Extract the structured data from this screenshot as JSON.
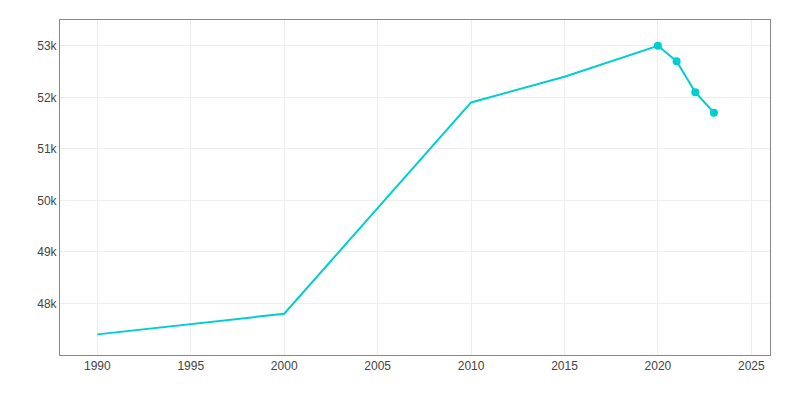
{
  "chart_data": {
    "type": "line",
    "series": [
      {
        "type": "line",
        "color": "#00CED1",
        "line_style": "solid",
        "x": [
          1990,
          1995,
          2000,
          2010,
          2015,
          2020,
          2021,
          2022,
          2023
        ],
        "values": [
          47400,
          47600,
          47800,
          51900,
          52400,
          53000,
          52700,
          52100,
          51700
        ]
      },
      {
        "type": "scatter",
        "color": "#00CED1",
        "marker": "circle",
        "x": [
          2020,
          2021,
          2022,
          2023
        ],
        "values": [
          53000,
          52700,
          52100,
          51700
        ]
      }
    ],
    "xlim": [
      1988,
      2026
    ],
    "ylim": [
      47000,
      53500
    ],
    "xticks": [
      1990,
      1995,
      2000,
      2005,
      2010,
      2015,
      2020,
      2025
    ],
    "yticks": [
      {
        "value": 48000,
        "label": "48k"
      },
      {
        "value": 49000,
        "label": "49k"
      },
      {
        "value": 50000,
        "label": "50k"
      },
      {
        "value": 51000,
        "label": "51k"
      },
      {
        "value": 52000,
        "label": "52k"
      },
      {
        "value": 53000,
        "label": "53k"
      }
    ],
    "grid": true
  }
}
